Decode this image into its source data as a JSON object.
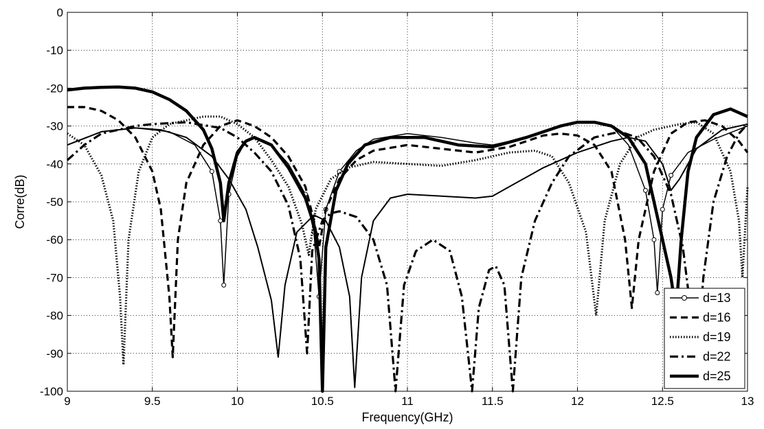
{
  "chart_data": {
    "type": "line",
    "title": "",
    "xlabel": "Frequency(GHz)",
    "ylabel": "Corre(dB)",
    "xlim": [
      9,
      13
    ],
    "ylim": [
      -100,
      0
    ],
    "grid": true,
    "legend_position": "bottom-right",
    "x_ticks": [
      "9",
      "9.5",
      "10",
      "10.5",
      "11",
      "11.5",
      "12",
      "12.5",
      "13"
    ],
    "y_ticks": [
      "0",
      "-10",
      "-20",
      "-30",
      "-40",
      "-50",
      "-60",
      "-70",
      "-80",
      "-90",
      "-100"
    ],
    "series": [
      {
        "name": "d=13",
        "style": "solid-circle",
        "points": [
          [
            9.0,
            -35
          ],
          [
            9.2,
            -31.5
          ],
          [
            9.4,
            -30.5
          ],
          [
            9.6,
            -31.5
          ],
          [
            9.75,
            -35
          ],
          [
            9.85,
            -42
          ],
          [
            9.9,
            -55
          ],
          [
            9.92,
            -72
          ],
          [
            9.95,
            -48
          ],
          [
            10.0,
            -38
          ],
          [
            10.05,
            -34
          ],
          [
            10.1,
            -33
          ],
          [
            10.2,
            -35
          ],
          [
            10.3,
            -40
          ],
          [
            10.4,
            -48
          ],
          [
            10.45,
            -58
          ],
          [
            10.48,
            -75
          ],
          [
            10.52,
            -52
          ],
          [
            10.6,
            -42
          ],
          [
            10.7,
            -36.5
          ],
          [
            10.8,
            -33.5
          ],
          [
            11.0,
            -32
          ],
          [
            11.2,
            -33
          ],
          [
            11.4,
            -34.5
          ],
          [
            11.5,
            -35
          ],
          [
            11.6,
            -34
          ],
          [
            11.8,
            -31.5
          ],
          [
            12.0,
            -29
          ],
          [
            12.1,
            -29
          ],
          [
            12.2,
            -30
          ],
          [
            12.3,
            -35
          ],
          [
            12.4,
            -47
          ],
          [
            12.45,
            -60
          ],
          [
            12.47,
            -74
          ],
          [
            12.5,
            -52
          ],
          [
            12.55,
            -43
          ],
          [
            12.65,
            -37
          ],
          [
            12.8,
            -33.5
          ],
          [
            13.0,
            -30
          ]
        ]
      },
      {
        "name": "d=16",
        "style": "dashed",
        "points": [
          [
            9.0,
            -25
          ],
          [
            9.1,
            -25
          ],
          [
            9.2,
            -26
          ],
          [
            9.3,
            -28.5
          ],
          [
            9.4,
            -33
          ],
          [
            9.5,
            -42
          ],
          [
            9.55,
            -52
          ],
          [
            9.6,
            -75
          ],
          [
            9.62,
            -91
          ],
          [
            9.65,
            -60
          ],
          [
            9.7,
            -45
          ],
          [
            9.8,
            -35
          ],
          [
            9.9,
            -30
          ],
          [
            10.0,
            -28.5
          ],
          [
            10.1,
            -30
          ],
          [
            10.2,
            -33
          ],
          [
            10.3,
            -38
          ],
          [
            10.4,
            -46
          ],
          [
            10.45,
            -55
          ],
          [
            10.48,
            -62
          ],
          [
            10.52,
            -52
          ],
          [
            10.6,
            -44
          ],
          [
            10.7,
            -39
          ],
          [
            10.8,
            -36.5
          ],
          [
            11.0,
            -35
          ],
          [
            11.2,
            -36
          ],
          [
            11.4,
            -37
          ],
          [
            11.6,
            -35.5
          ],
          [
            11.8,
            -32.5
          ],
          [
            11.9,
            -32
          ],
          [
            12.0,
            -32.5
          ],
          [
            12.1,
            -35
          ],
          [
            12.2,
            -42
          ],
          [
            12.28,
            -60
          ],
          [
            12.32,
            -78
          ],
          [
            12.36,
            -60
          ],
          [
            12.45,
            -42
          ],
          [
            12.55,
            -32
          ],
          [
            12.65,
            -29
          ],
          [
            12.75,
            -28.5
          ],
          [
            12.85,
            -30
          ],
          [
            12.95,
            -34
          ],
          [
            13.0,
            -37
          ]
        ]
      },
      {
        "name": "d=19",
        "style": "dotted",
        "points": [
          [
            9.0,
            -32
          ],
          [
            9.1,
            -35
          ],
          [
            9.2,
            -43
          ],
          [
            9.27,
            -55
          ],
          [
            9.31,
            -75
          ],
          [
            9.33,
            -93
          ],
          [
            9.36,
            -60
          ],
          [
            9.42,
            -42
          ],
          [
            9.5,
            -33
          ],
          [
            9.6,
            -29.5
          ],
          [
            9.8,
            -27.5
          ],
          [
            9.9,
            -27.5
          ],
          [
            10.0,
            -29.5
          ],
          [
            10.1,
            -33
          ],
          [
            10.2,
            -39
          ],
          [
            10.3,
            -46
          ],
          [
            10.38,
            -56
          ],
          [
            10.42,
            -64
          ],
          [
            10.46,
            -52
          ],
          [
            10.55,
            -44
          ],
          [
            10.65,
            -41
          ],
          [
            10.8,
            -39.5
          ],
          [
            11.0,
            -40
          ],
          [
            11.2,
            -40.5
          ],
          [
            11.4,
            -39
          ],
          [
            11.6,
            -37
          ],
          [
            11.75,
            -36.5
          ],
          [
            11.85,
            -38
          ],
          [
            11.95,
            -45
          ],
          [
            12.05,
            -58
          ],
          [
            12.11,
            -80
          ],
          [
            12.16,
            -55
          ],
          [
            12.25,
            -40
          ],
          [
            12.35,
            -33
          ],
          [
            12.45,
            -31
          ],
          [
            12.6,
            -29.5
          ],
          [
            12.7,
            -29
          ],
          [
            12.8,
            -32
          ],
          [
            12.9,
            -42
          ],
          [
            12.95,
            -55
          ],
          [
            12.97,
            -70
          ],
          [
            13.0,
            -46
          ]
        ]
      },
      {
        "name": "d=22",
        "style": "dashdot",
        "points": [
          [
            9.0,
            -39
          ],
          [
            9.1,
            -35
          ],
          [
            9.2,
            -32
          ],
          [
            9.3,
            -31
          ],
          [
            9.4,
            -30
          ],
          [
            9.5,
            -29.5
          ],
          [
            9.7,
            -29
          ],
          [
            9.9,
            -30.5
          ],
          [
            10.0,
            -33
          ],
          [
            10.1,
            -37
          ],
          [
            10.2,
            -42
          ],
          [
            10.3,
            -51
          ],
          [
            10.37,
            -65
          ],
          [
            10.41,
            -90
          ],
          [
            10.44,
            -63
          ],
          [
            10.5,
            -55
          ],
          [
            10.55,
            -53
          ],
          [
            10.6,
            -52.5
          ],
          [
            10.7,
            -54
          ],
          [
            10.8,
            -60
          ],
          [
            10.88,
            -72
          ],
          [
            10.93,
            -100
          ],
          [
            10.98,
            -72
          ],
          [
            11.05,
            -63
          ],
          [
            11.15,
            -60
          ],
          [
            11.25,
            -63
          ],
          [
            11.32,
            -75
          ],
          [
            11.38,
            -100
          ],
          [
            11.42,
            -78
          ],
          [
            11.48,
            -68
          ],
          [
            11.52,
            -67
          ],
          [
            11.57,
            -72
          ],
          [
            11.62,
            -100
          ],
          [
            11.67,
            -70
          ],
          [
            11.75,
            -55
          ],
          [
            11.85,
            -45
          ],
          [
            11.95,
            -38
          ],
          [
            12.1,
            -33
          ],
          [
            12.25,
            -31.5
          ],
          [
            12.35,
            -33
          ],
          [
            12.45,
            -38
          ],
          [
            12.55,
            -48
          ],
          [
            12.62,
            -62
          ],
          [
            12.67,
            -80
          ],
          [
            12.7,
            -94
          ],
          [
            12.74,
            -70
          ],
          [
            12.8,
            -50
          ],
          [
            12.88,
            -38
          ],
          [
            12.95,
            -32
          ],
          [
            13.0,
            -29.5
          ]
        ]
      },
      {
        "name": "d=25",
        "style": "solid",
        "points": [
          [
            9.0,
            -20.5
          ],
          [
            9.1,
            -20
          ],
          [
            9.2,
            -19.8
          ],
          [
            9.3,
            -19.7
          ],
          [
            9.4,
            -20
          ],
          [
            9.5,
            -21
          ],
          [
            9.6,
            -23
          ],
          [
            9.7,
            -26
          ],
          [
            9.8,
            -31
          ],
          [
            9.85,
            -36
          ],
          [
            9.9,
            -45
          ],
          [
            9.92,
            -55
          ],
          [
            9.95,
            -45
          ],
          [
            10.0,
            -37
          ],
          [
            10.05,
            -34
          ],
          [
            10.1,
            -33
          ],
          [
            10.2,
            -35
          ],
          [
            10.3,
            -41
          ],
          [
            10.4,
            -49
          ],
          [
            10.45,
            -56
          ],
          [
            10.48,
            -65
          ],
          [
            10.5,
            -100
          ],
          [
            10.52,
            -62
          ],
          [
            10.58,
            -47
          ],
          [
            10.65,
            -40
          ],
          [
            10.75,
            -35
          ],
          [
            10.9,
            -33
          ],
          [
            11.1,
            -33
          ],
          [
            11.3,
            -35
          ],
          [
            11.5,
            -35.5
          ],
          [
            11.7,
            -33
          ],
          [
            11.9,
            -30
          ],
          [
            12.0,
            -29
          ],
          [
            12.1,
            -29
          ],
          [
            12.2,
            -30
          ],
          [
            12.3,
            -33
          ],
          [
            12.4,
            -40
          ],
          [
            12.45,
            -50
          ],
          [
            12.5,
            -60
          ],
          [
            12.55,
            -70
          ],
          [
            12.58,
            -79
          ],
          [
            12.61,
            -60
          ],
          [
            12.65,
            -42
          ],
          [
            12.7,
            -33
          ],
          [
            12.8,
            -27
          ],
          [
            12.9,
            -25.5
          ],
          [
            13.0,
            -27.5
          ]
        ]
      },
      {
        "name": "",
        "style": "solid-thin",
        "points": [
          [
            9.0,
            -35
          ],
          [
            9.2,
            -31.5
          ],
          [
            9.4,
            -30.5
          ],
          [
            9.55,
            -31
          ],
          [
            9.7,
            -33
          ],
          [
            9.85,
            -38
          ],
          [
            9.95,
            -44
          ],
          [
            10.05,
            -52
          ],
          [
            10.12,
            -62
          ],
          [
            10.2,
            -76
          ],
          [
            10.24,
            -91
          ],
          [
            10.28,
            -72
          ],
          [
            10.35,
            -58
          ],
          [
            10.45,
            -53.5
          ],
          [
            10.52,
            -55
          ],
          [
            10.6,
            -62
          ],
          [
            10.66,
            -75
          ],
          [
            10.69,
            -99
          ],
          [
            10.73,
            -70
          ],
          [
            10.8,
            -55
          ],
          [
            10.9,
            -49
          ],
          [
            11.0,
            -48
          ],
          [
            11.2,
            -48.5
          ],
          [
            11.4,
            -49
          ],
          [
            11.5,
            -48.5
          ],
          [
            11.6,
            -46
          ],
          [
            11.8,
            -41
          ],
          [
            12.0,
            -37
          ],
          [
            12.2,
            -34
          ],
          [
            12.3,
            -33
          ],
          [
            12.4,
            -34
          ],
          [
            12.5,
            -40
          ],
          [
            12.55,
            -47
          ],
          [
            12.6,
            -44
          ],
          [
            12.7,
            -36
          ],
          [
            12.85,
            -31
          ],
          [
            13.0,
            -29.5
          ]
        ]
      }
    ]
  }
}
